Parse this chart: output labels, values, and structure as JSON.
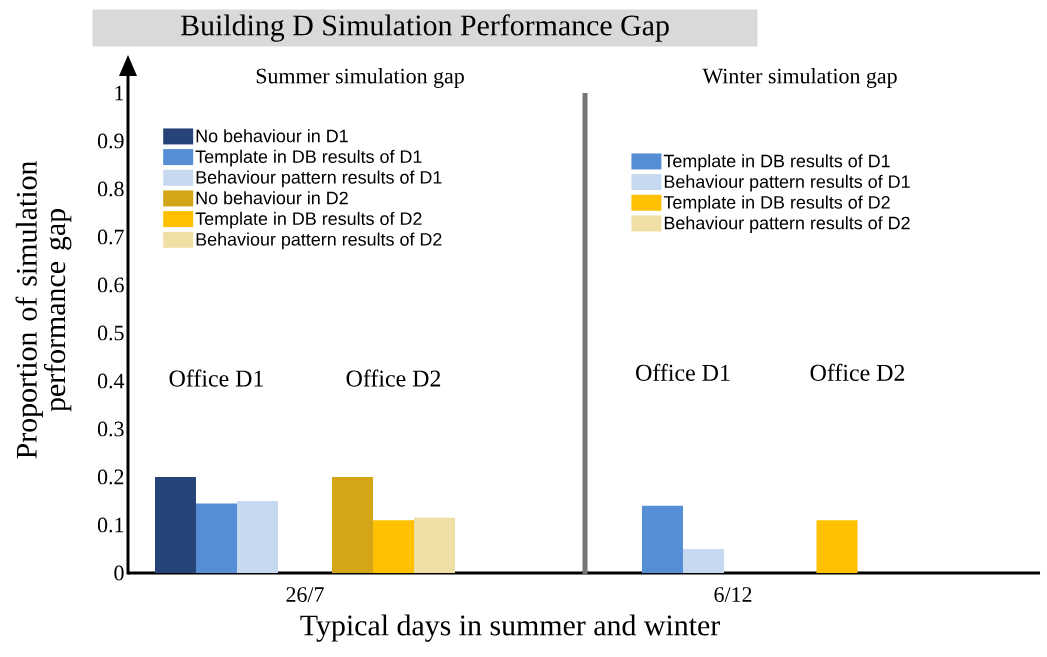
{
  "chart_data": [
    {
      "type": "bar",
      "title": "Building D Simulation Performance Gap",
      "subtitle": "Summer simulation gap",
      "xlabel": "Typical days in summer and winter",
      "ylabel": "Proportion of simulation performance gap",
      "categories": [
        "Office D1",
        "Office D2"
      ],
      "series": [
        {
          "name": "No behaviour in D1",
          "color": "#264478",
          "values": [
            0.2,
            null
          ]
        },
        {
          "name": "Template in DB results of D1",
          "color": "#558ed5",
          "values": [
            0.145,
            null
          ]
        },
        {
          "name": "Behaviour pattern results of D1",
          "color": "#c6d9f0",
          "values": [
            0.15,
            null
          ]
        },
        {
          "name": "No behaviour in D2",
          "color": "#d4a617",
          "values": [
            null,
            0.2
          ]
        },
        {
          "name": "Template in DB results of D2",
          "color": "#ffc000",
          "values": [
            null,
            0.11
          ]
        },
        {
          "name": "Behaviour pattern results of D2",
          "color": "#f0dfa4",
          "values": [
            null,
            0.115
          ]
        }
      ],
      "ylim": [
        0,
        1
      ],
      "yticks": [
        0,
        0.1,
        0.2,
        0.3,
        0.4,
        0.5,
        0.6,
        0.7,
        0.8,
        0.9,
        1
      ],
      "legend": "top left",
      "annotations": [
        "26/7"
      ]
    },
    {
      "type": "bar",
      "title": "Winter simulation gap",
      "categories": [
        "Office D1",
        "Office D2"
      ],
      "series": [
        {
          "name": "Template in DB results of D1",
          "color": "#558ed5",
          "values": [
            0.14,
            null
          ]
        },
        {
          "name": "Behaviour pattern results of D1",
          "color": "#c6d9f0",
          "values": [
            0.05,
            null
          ]
        },
        {
          "name": "Template in DB results of D2",
          "color": "#ffc000",
          "values": [
            null,
            0.11
          ]
        },
        {
          "name": "Behaviour pattern results of D2",
          "color": "#f0dfa4",
          "values": [
            null,
            null
          ]
        }
      ],
      "ylim": [
        0,
        1
      ],
      "yticks": [
        0,
        0.1,
        0.2,
        0.3,
        0.4,
        0.5,
        0.6,
        0.7,
        0.8,
        0.9,
        1
      ],
      "tick_labels": "x",
      "legend": "top",
      "annotations": [
        "6/12"
      ]
    }
  ]
}
